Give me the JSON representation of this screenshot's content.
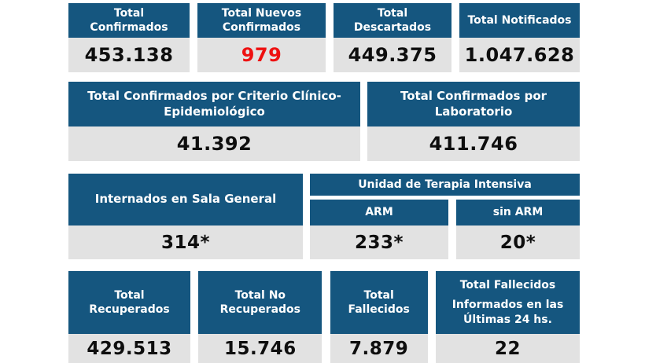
{
  "colors": {
    "header_bg": "#15567F",
    "header_text": "#ffffff",
    "value_bg": "#e2e2e2",
    "value_text": "#0e0e0e",
    "highlight_red": "#ee1111"
  },
  "summary_row": {
    "cards": [
      {
        "label": "Total\nConfirmados",
        "value": "453.138",
        "highlight": false
      },
      {
        "label": "Total Nuevos\nConfirmados",
        "value": "979",
        "highlight": true
      },
      {
        "label": "Total\nDescartados",
        "value": "449.375",
        "highlight": false
      },
      {
        "label": "Total Notificados",
        "value": "1.047.628",
        "highlight": false
      }
    ]
  },
  "criteria_row": {
    "cards": [
      {
        "label": "Total Confirmados por Criterio Clínico-\nEpidemiológico",
        "value": "41.392"
      },
      {
        "label": "Total Confirmados por\nLaboratorio",
        "value": "411.746"
      }
    ]
  },
  "hospital_row": {
    "general_ward": {
      "label": "Internados en Sala General",
      "value": "314*"
    },
    "icu": {
      "title": "Unidad de Terapia Intensiva",
      "columns": [
        {
          "label": "ARM",
          "value": "233*"
        },
        {
          "label": "sin ARM",
          "value": "20*"
        }
      ]
    }
  },
  "outcome_row": {
    "cards": [
      {
        "label": "Total\nRecuperados",
        "value": "429.513"
      },
      {
        "label": "Total No\nRecuperados",
        "value": "15.746"
      },
      {
        "label": "Total\nFallecidos",
        "value": "7.879"
      },
      {
        "label": "Total Fallecidos",
        "label2": "Informados en las\nÚltimas 24 hs.",
        "value": "22"
      }
    ]
  }
}
